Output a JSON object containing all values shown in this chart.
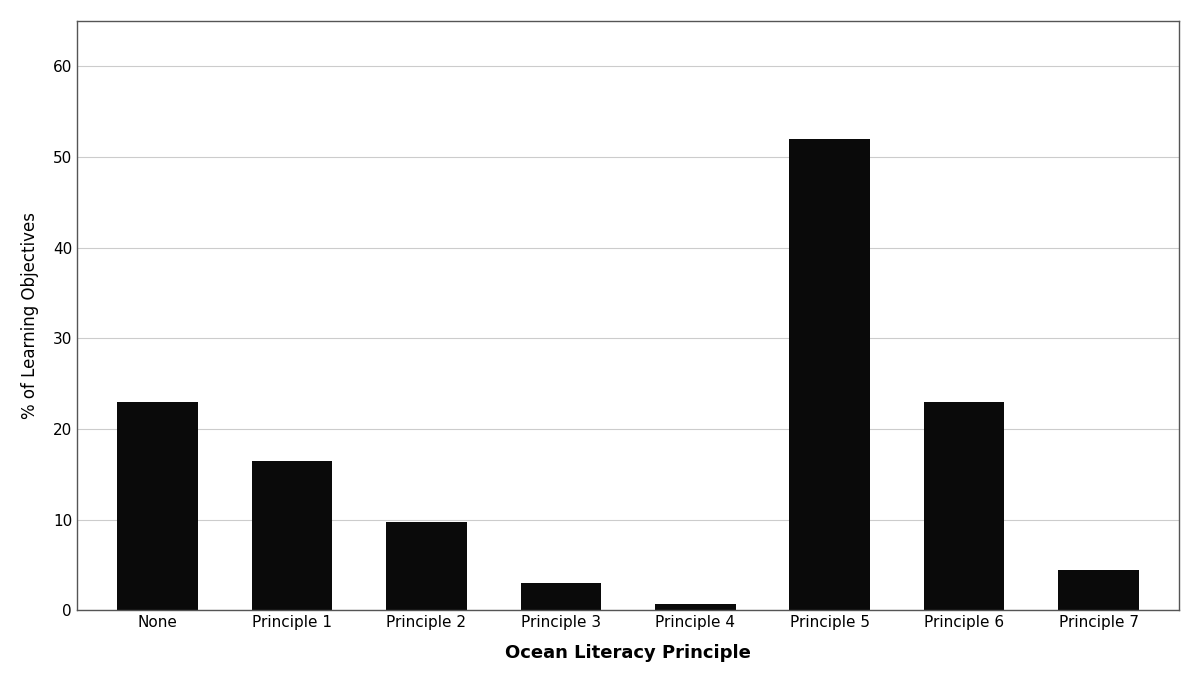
{
  "categories": [
    "None",
    "Principle 1",
    "Principle 2",
    "Principle 3",
    "Principle 4",
    "Principle 5",
    "Principle 6",
    "Principle 7"
  ],
  "values": [
    23,
    16.5,
    9.7,
    3.0,
    0.7,
    52,
    23,
    4.5
  ],
  "bar_color": "#0a0a0a",
  "xlabel": "Ocean Literacy Principle",
  "ylabel": "% of Learning Objectives",
  "xlabel_fontsize": 13,
  "ylabel_fontsize": 12,
  "xlabel_fontweight": "bold",
  "tick_fontsize": 11,
  "ylim": [
    0,
    65
  ],
  "yticks": [
    0,
    10,
    20,
    30,
    40,
    50,
    60
  ],
  "grid_axis": "y",
  "grid_color": "#cccccc",
  "grid_linewidth": 0.8,
  "bar_width": 0.6,
  "background_color": "#ffffff",
  "figure_edge_color": "#888888"
}
